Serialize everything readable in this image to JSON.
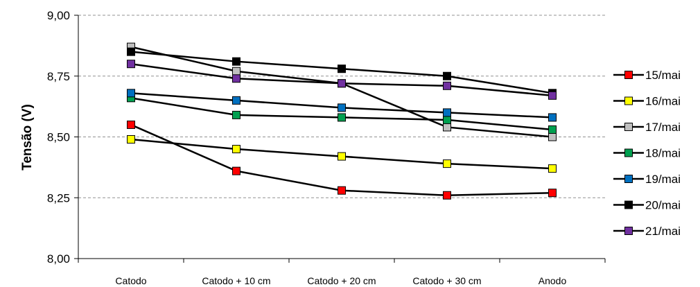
{
  "chart_data": {
    "type": "line",
    "title": "",
    "xlabel": "",
    "ylabel": "Tensão (V)",
    "categories": [
      "Catodo",
      "Catodo + 10 cm",
      "Catodo + 20 cm",
      "Catodo + 30 cm",
      "Anodo"
    ],
    "ylim": [
      8.0,
      9.0
    ],
    "yticks": [
      "8,00",
      "8,25",
      "8,50",
      "8,75",
      "9,00"
    ],
    "ytick_values": [
      8.0,
      8.25,
      8.5,
      8.75,
      9.0
    ],
    "grid": "horizontal dashed",
    "legend": "right",
    "series": [
      {
        "name": "15/mai",
        "color": "#ff0000",
        "values": [
          8.55,
          8.36,
          8.28,
          8.26,
          8.27
        ]
      },
      {
        "name": "16/mai",
        "color": "#ffff00",
        "values": [
          8.49,
          8.45,
          8.42,
          8.39,
          8.37
        ]
      },
      {
        "name": "17/mai",
        "color": "#c0c0c0",
        "values": [
          8.87,
          8.77,
          8.72,
          8.54,
          8.5
        ]
      },
      {
        "name": "18/mai",
        "color": "#00a050",
        "values": [
          8.66,
          8.59,
          8.58,
          8.57,
          8.53
        ]
      },
      {
        "name": "19/mai",
        "color": "#0070c0",
        "values": [
          8.68,
          8.65,
          8.62,
          8.6,
          8.58
        ]
      },
      {
        "name": "20/mai",
        "color": "#000000",
        "values": [
          8.85,
          8.81,
          8.78,
          8.75,
          8.68
        ]
      },
      {
        "name": "21/mai",
        "color": "#7030a0",
        "values": [
          8.8,
          8.74,
          8.72,
          8.71,
          8.67
        ]
      }
    ]
  }
}
